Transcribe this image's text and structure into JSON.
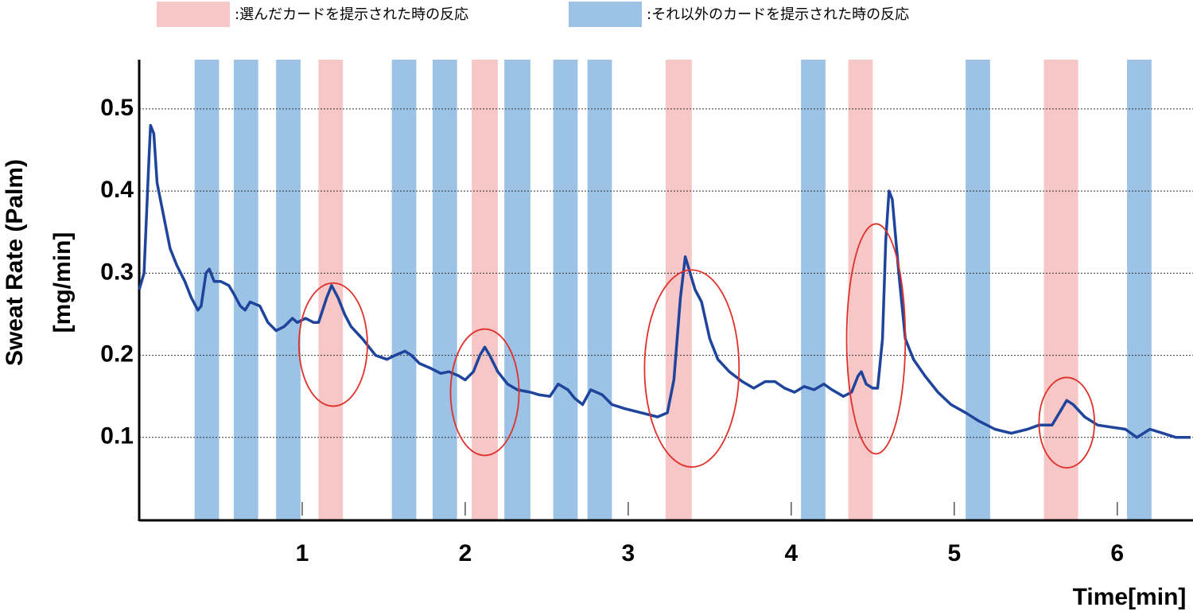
{
  "chart_data": {
    "type": "line",
    "y_label": [
      "Sweat Rate (Palm)",
      "[mg/min]"
    ],
    "x_label": "Time[min]",
    "xlim": [
      0,
      6.45
    ],
    "ylim": [
      0,
      0.56
    ],
    "xticks": [
      1,
      2,
      3,
      4,
      5,
      6
    ],
    "yticks": [
      0.1,
      0.2,
      0.3,
      0.4,
      0.5
    ],
    "grid": true,
    "band_groups": [
      {
        "name": ":選んだカードを提示された時の反応",
        "color": "#f7c6c7",
        "ranges": [
          [
            1.1,
            1.25
          ],
          [
            2.04,
            2.2
          ],
          [
            3.23,
            3.39
          ],
          [
            4.35,
            4.5
          ],
          [
            5.55,
            5.76
          ]
        ]
      },
      {
        "name": ":それ以外のカードを提示された時の反応",
        "color": "#9cc3e5",
        "ranges": [
          [
            0.34,
            0.49
          ],
          [
            0.58,
            0.73
          ],
          [
            0.84,
            0.99
          ],
          [
            1.55,
            1.7
          ],
          [
            1.8,
            1.95
          ],
          [
            2.24,
            2.4
          ],
          [
            2.54,
            2.69
          ],
          [
            2.75,
            2.9
          ],
          [
            4.06,
            4.21
          ],
          [
            5.07,
            5.22
          ],
          [
            6.06,
            6.21
          ]
        ]
      }
    ],
    "highlights": {
      "color": "#e0302a",
      "ellipses": [
        {
          "x": 1.19,
          "y": 0.213,
          "rx": 0.21,
          "ry": 0.075
        },
        {
          "x": 2.12,
          "y": 0.155,
          "rx": 0.21,
          "ry": 0.077
        },
        {
          "x": 3.39,
          "y": 0.184,
          "rx": 0.29,
          "ry": 0.12
        },
        {
          "x": 4.52,
          "y": 0.22,
          "rx": 0.18,
          "ry": 0.14
        },
        {
          "x": 5.69,
          "y": 0.118,
          "rx": 0.17,
          "ry": 0.055
        }
      ]
    },
    "series": [
      {
        "color": "#1f449c",
        "x": [
          0.0,
          0.03,
          0.06,
          0.07,
          0.09,
          0.11,
          0.15,
          0.17,
          0.19,
          0.23,
          0.28,
          0.32,
          0.36,
          0.38,
          0.41,
          0.43,
          0.46,
          0.5,
          0.55,
          0.58,
          0.62,
          0.65,
          0.68,
          0.74,
          0.79,
          0.84,
          0.89,
          0.94,
          0.97,
          1.02,
          1.07,
          1.1,
          1.15,
          1.18,
          1.22,
          1.26,
          1.3,
          1.37,
          1.45,
          1.52,
          1.57,
          1.63,
          1.67,
          1.72,
          1.78,
          1.85,
          1.9,
          1.96,
          2.0,
          2.05,
          2.09,
          2.12,
          2.15,
          2.2,
          2.26,
          2.32,
          2.4,
          2.45,
          2.52,
          2.57,
          2.63,
          2.67,
          2.72,
          2.77,
          2.84,
          2.9,
          2.98,
          3.08,
          3.18,
          3.24,
          3.28,
          3.32,
          3.35,
          3.38,
          3.41,
          3.45,
          3.5,
          3.55,
          3.62,
          3.7,
          3.77,
          3.84,
          3.9,
          3.96,
          4.02,
          4.08,
          4.14,
          4.2,
          4.25,
          4.32,
          4.37,
          4.41,
          4.43,
          4.46,
          4.5,
          4.53,
          4.56,
          4.58,
          4.6,
          4.62,
          4.66,
          4.7,
          4.75,
          4.82,
          4.9,
          4.98,
          5.07,
          5.15,
          5.25,
          5.35,
          5.45,
          5.52,
          5.6,
          5.66,
          5.69,
          5.73,
          5.8,
          5.88,
          5.98,
          6.05,
          6.12,
          6.2,
          6.28,
          6.36,
          6.45
        ],
        "values": [
          0.28,
          0.3,
          0.44,
          0.48,
          0.47,
          0.41,
          0.37,
          0.35,
          0.33,
          0.31,
          0.29,
          0.27,
          0.255,
          0.26,
          0.3,
          0.305,
          0.29,
          0.29,
          0.285,
          0.275,
          0.26,
          0.255,
          0.265,
          0.26,
          0.24,
          0.23,
          0.235,
          0.245,
          0.24,
          0.245,
          0.24,
          0.24,
          0.27,
          0.285,
          0.27,
          0.25,
          0.235,
          0.22,
          0.2,
          0.195,
          0.2,
          0.205,
          0.2,
          0.19,
          0.185,
          0.178,
          0.18,
          0.175,
          0.17,
          0.18,
          0.2,
          0.21,
          0.2,
          0.18,
          0.165,
          0.158,
          0.155,
          0.152,
          0.15,
          0.165,
          0.158,
          0.148,
          0.14,
          0.158,
          0.152,
          0.14,
          0.135,
          0.13,
          0.125,
          0.13,
          0.17,
          0.27,
          0.32,
          0.3,
          0.28,
          0.265,
          0.22,
          0.195,
          0.18,
          0.168,
          0.16,
          0.168,
          0.168,
          0.16,
          0.155,
          0.162,
          0.158,
          0.165,
          0.158,
          0.15,
          0.155,
          0.175,
          0.18,
          0.165,
          0.16,
          0.16,
          0.22,
          0.34,
          0.4,
          0.39,
          0.3,
          0.22,
          0.195,
          0.175,
          0.155,
          0.14,
          0.13,
          0.12,
          0.11,
          0.105,
          0.11,
          0.115,
          0.115,
          0.135,
          0.145,
          0.14,
          0.125,
          0.115,
          0.112,
          0.11,
          0.1,
          0.11,
          0.105,
          0.1,
          0.1
        ]
      }
    ]
  }
}
